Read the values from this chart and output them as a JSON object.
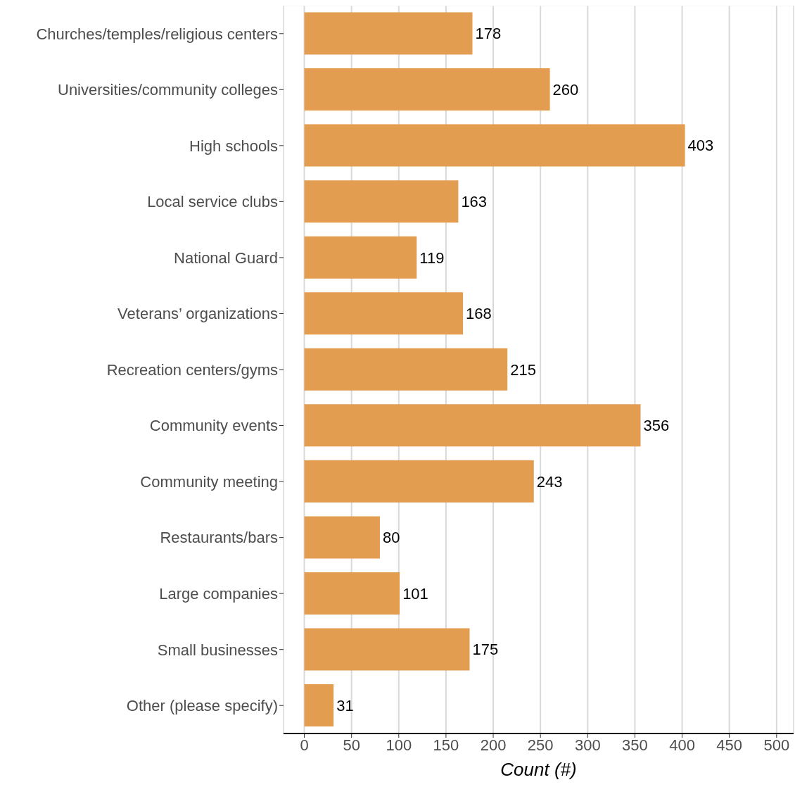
{
  "chart_data": {
    "type": "bar",
    "orientation": "horizontal",
    "xlabel": "Count (#)",
    "categories": [
      "Churches/temples/religious centers",
      "Universities/community colleges",
      "High schools",
      "Local service clubs",
      "National Guard",
      "Veterans’ organizations",
      "Recreation centers/gyms",
      "Community events",
      "Community meeting",
      "Restaurants/bars",
      "Large companies",
      "Small businesses",
      "Other (please specify)"
    ],
    "values": [
      178,
      260,
      403,
      163,
      119,
      168,
      215,
      356,
      243,
      80,
      101,
      175,
      31
    ],
    "color": "#e39d51",
    "xlim": [
      -22,
      518
    ],
    "xticks": [
      0,
      50,
      100,
      150,
      200,
      250,
      300,
      350,
      400,
      450,
      500
    ],
    "grid": "x",
    "data_labels": true
  }
}
